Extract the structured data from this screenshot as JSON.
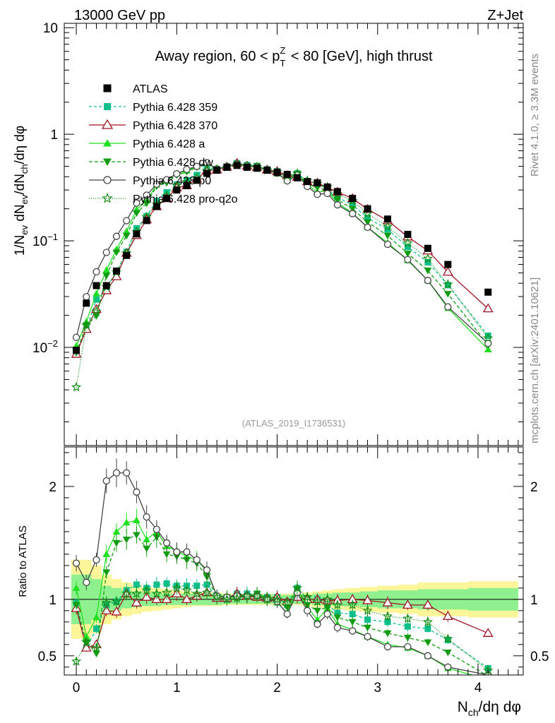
{
  "header": {
    "left": "13000 GeV pp",
    "right": "Z+Jet"
  },
  "side": {
    "rivet": "Rivet 4.1.0, ≥ 3.3M events",
    "mcplots": "mcplots.cern.ch [arXiv:2401.10621]"
  },
  "chart_data": {
    "type": "line",
    "title": "Away region, 60 < p_T^Z < 80 [GeV], high thrust",
    "analysis_label": "(ATLAS_2019_I1736531)",
    "xlabel": "N_ch/dη dφ",
    "ylabel_main": "1/N_ev dN_ev/dN_ch/dη dφ",
    "ylabel_ratio": "Ratio to ATLAS",
    "yscale_main": "log",
    "xlim": [
      -0.12,
      4.45
    ],
    "ylim_main": [
      0.0012,
      11
    ],
    "ylim_ratio": [
      0.33,
      2.35
    ],
    "x_ticks": [
      0,
      1,
      2,
      3,
      4
    ],
    "y_ticks_main": [
      "10^-2",
      "10^-1",
      "1",
      "10"
    ],
    "y_ticks_ratio": [
      0.5,
      1,
      2
    ],
    "x": [
      0.0,
      0.1,
      0.2,
      0.3,
      0.4,
      0.5,
      0.6,
      0.7,
      0.8,
      0.9,
      1.0,
      1.1,
      1.2,
      1.3,
      1.4,
      1.5,
      1.6,
      1.7,
      1.8,
      1.9,
      2.0,
      2.1,
      2.2,
      2.3,
      2.4,
      2.5,
      2.6,
      2.75,
      2.9,
      3.1,
      3.3,
      3.5,
      3.7,
      4.1
    ],
    "data": {
      "name": "ATLAS",
      "values": [
        0.0094,
        0.026,
        0.038,
        0.038,
        0.052,
        0.073,
        0.116,
        0.155,
        0.21,
        0.25,
        0.3,
        0.33,
        0.37,
        0.43,
        0.46,
        0.49,
        0.51,
        0.49,
        0.48,
        0.46,
        0.44,
        0.42,
        0.39,
        0.36,
        0.35,
        0.32,
        0.29,
        0.25,
        0.2,
        0.16,
        0.115,
        0.085,
        0.06,
        0.033
      ]
    },
    "band_stat": [
      0.22,
      0.22,
      0.18,
      0.12,
      0.1,
      0.08,
      0.07,
      0.06,
      0.06,
      0.05,
      0.05,
      0.05,
      0.05,
      0.05,
      0.05,
      0.04,
      0.04,
      0.04,
      0.04,
      0.04,
      0.04,
      0.04,
      0.04,
      0.04,
      0.05,
      0.05,
      0.06,
      0.06,
      0.07,
      0.08,
      0.08,
      0.09,
      0.09,
      0.1
    ],
    "band_total": [
      0.35,
      0.35,
      0.3,
      0.22,
      0.18,
      0.15,
      0.13,
      0.11,
      0.1,
      0.09,
      0.08,
      0.07,
      0.06,
      0.06,
      0.06,
      0.05,
      0.05,
      0.05,
      0.05,
      0.05,
      0.05,
      0.05,
      0.05,
      0.06,
      0.07,
      0.08,
      0.09,
      0.1,
      0.11,
      0.12,
      0.13,
      0.15,
      0.15,
      0.16
    ],
    "series": [
      {
        "name": "Pythia 6.428 359",
        "color": "#0fbf8c",
        "dash": "4,3",
        "marker": "square",
        "ratio": [
          0.97,
          0.57,
          0.74,
          0.95,
          0.98,
          1.08,
          1.13,
          1.1,
          1.13,
          1.14,
          1.12,
          1.12,
          1.12,
          1.13,
          1.02,
          1.0,
          1.05,
          1.05,
          1.05,
          1.02,
          1.02,
          0.95,
          1.1,
          1.0,
          1.0,
          0.95,
          0.88,
          0.87,
          0.82,
          0.8,
          0.76,
          0.74,
          0.64,
          0.39
        ]
      },
      {
        "name": "Pythia 6.428 370",
        "color": "#a01525",
        "dash": "",
        "marker": "open-triangle",
        "ratio": [
          0.92,
          0.57,
          0.6,
          0.9,
          0.89,
          1.05,
          0.97,
          1.02,
          1.0,
          1.0,
          1.05,
          1.0,
          1.03,
          1.06,
          1.01,
          1.01,
          1.05,
          1.03,
          1.02,
          1.01,
          1.02,
          0.98,
          1.02,
          1.0,
          1.0,
          0.99,
          0.99,
          1.0,
          0.99,
          0.97,
          0.95,
          0.95,
          0.85,
          0.7
        ]
      },
      {
        "name": "Pythia 6.428 a",
        "color": "#21e021",
        "dash": "",
        "marker": "triangle",
        "ratio": [
          1.1,
          0.67,
          0.84,
          1.4,
          1.6,
          1.68,
          1.7,
          1.53,
          1.6,
          1.47,
          1.43,
          1.38,
          1.35,
          1.25,
          1.03,
          1.02,
          1.03,
          1.04,
          1.04,
          1.01,
          0.97,
          0.88,
          1.09,
          0.93,
          0.82,
          0.92,
          0.78,
          0.73,
          0.67,
          0.6,
          0.57,
          0.5,
          0.39,
          0.29
        ]
      },
      {
        "name": "Pythia 6.428 dw",
        "color": "#119c11",
        "dash": "5,3",
        "marker": "down-triangle",
        "ratio": [
          0.95,
          0.62,
          0.52,
          1.24,
          1.5,
          1.53,
          1.57,
          1.45,
          1.55,
          1.4,
          1.38,
          1.35,
          1.32,
          1.2,
          1.02,
          1.02,
          1.03,
          1.02,
          1.05,
          1.01,
          0.98,
          0.93,
          1.09,
          0.95,
          0.9,
          0.93,
          0.84,
          0.8,
          0.75,
          0.7,
          0.66,
          0.62,
          0.53,
          0.32
        ]
      },
      {
        "name": "Pythia 6.428 p0",
        "color": "#444444",
        "dash": "",
        "marker": "open-circle",
        "ratio": [
          1.32,
          1.15,
          1.35,
          2.05,
          2.12,
          2.12,
          1.95,
          1.73,
          1.62,
          1.5,
          1.42,
          1.42,
          1.35,
          1.26,
          1.03,
          1.02,
          1.03,
          1.03,
          1.03,
          1.0,
          0.98,
          0.87,
          1.06,
          0.9,
          0.78,
          0.87,
          0.75,
          0.72,
          0.67,
          0.58,
          0.58,
          0.5,
          0.4,
          0.33
        ]
      },
      {
        "name": "Pythia 6.428 pro-q2o",
        "color": "#158f15",
        "dash": "1,2",
        "marker": "star",
        "ratio": [
          0.45,
          0.62,
          0.57,
          0.97,
          0.98,
          1.05,
          1.05,
          1.08,
          1.05,
          1.06,
          1.1,
          1.08,
          1.05,
          1.06,
          1.02,
          1.0,
          1.01,
          1.03,
          1.03,
          1.0,
          1.0,
          0.97,
          1.1,
          1.02,
          0.98,
          1.0,
          0.95,
          0.95,
          0.9,
          0.85,
          0.83,
          0.8,
          0.65,
          0.37
        ]
      }
    ]
  }
}
